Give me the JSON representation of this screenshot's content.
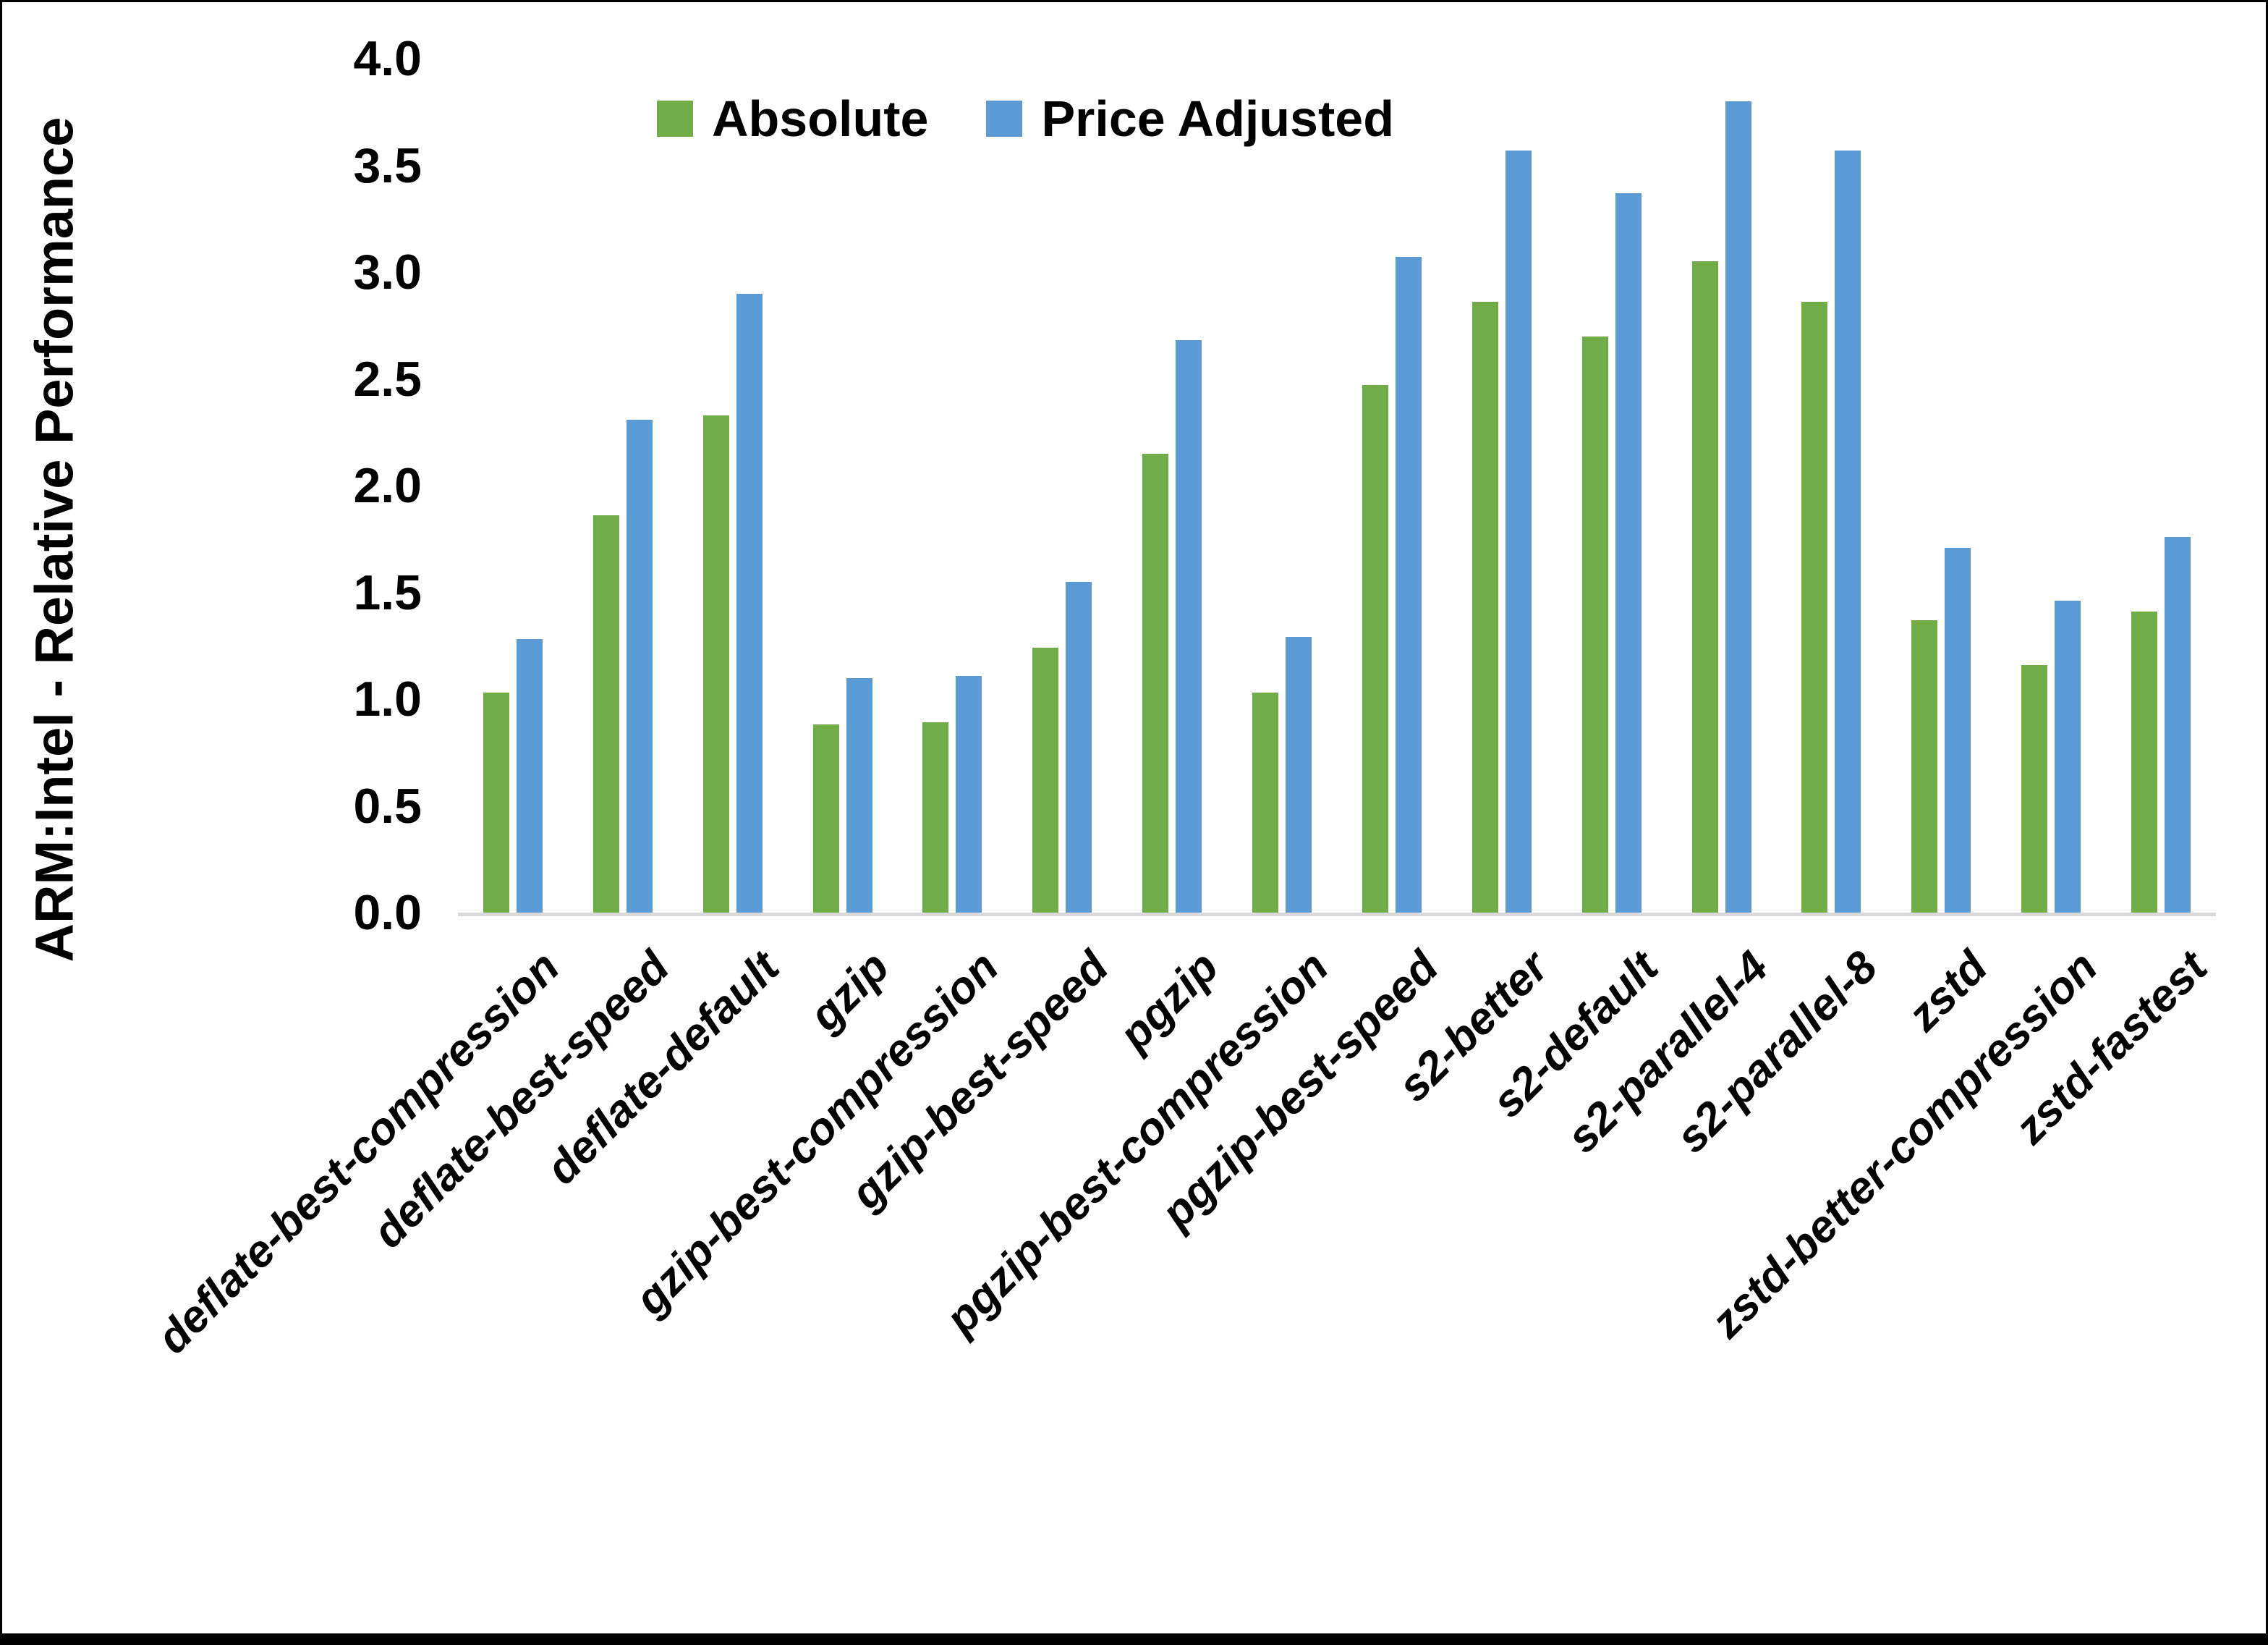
{
  "chart_data": {
    "type": "bar",
    "title": "",
    "xlabel": "",
    "ylabel": "ARM:Intel - Relative Performance",
    "ylim": [
      0.0,
      4.0
    ],
    "yticks": [
      "0.0",
      "0.5",
      "1.0",
      "1.5",
      "2.0",
      "2.5",
      "3.0",
      "3.5",
      "4.0"
    ],
    "grid": false,
    "legend_position": "top-center",
    "axis_line_color": "#D9D9D9",
    "categories": [
      "deflate-best-compression",
      "deflate-best-speed",
      "deflate-default",
      "gzip",
      "gzip-best-compression",
      "gzip-best-speed",
      "pgzip",
      "pgzip-best-compression",
      "pgzip-best-speed",
      "s2-better",
      "s2-default",
      "s2-parallel-4",
      "s2-parallel-8",
      "zstd",
      "zstd-better-compression",
      "zstd-fastest"
    ],
    "series": [
      {
        "name": "Absolute",
        "color": "#70AD47",
        "values": [
          1.03,
          1.86,
          2.33,
          0.88,
          0.89,
          1.24,
          2.15,
          1.03,
          2.47,
          2.86,
          2.7,
          3.05,
          2.86,
          1.37,
          1.16,
          1.41
        ]
      },
      {
        "name": "Price Adjusted",
        "color": "#5B9BD5",
        "values": [
          1.28,
          2.31,
          2.9,
          1.1,
          1.11,
          1.55,
          2.68,
          1.29,
          3.07,
          3.57,
          3.37,
          3.8,
          3.57,
          1.71,
          1.46,
          1.76
        ]
      }
    ]
  }
}
